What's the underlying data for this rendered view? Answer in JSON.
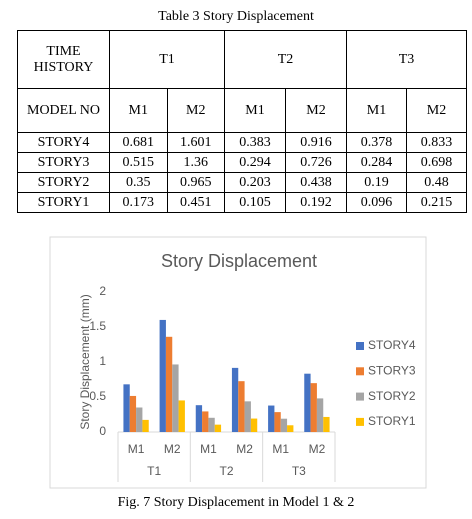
{
  "table_caption": "Table 3 Story Displacement",
  "table": {
    "header": {
      "time_history": "TIME HISTORY",
      "periods": [
        "T1",
        "T2",
        "T3"
      ],
      "model_no": "MODEL NO",
      "models": [
        "M1",
        "M2",
        "M1",
        "M2",
        "M1",
        "M2"
      ]
    },
    "rows": [
      [
        "STORY4",
        "0.681",
        "1.601",
        "0.383",
        "0.916",
        "0.378",
        "0.833"
      ],
      [
        "STORY3",
        "0.515",
        "1.36",
        "0.294",
        "0.726",
        "0.284",
        "0.698"
      ],
      [
        "STORY2",
        "0.35",
        "0.965",
        "0.203",
        "0.438",
        "0.19",
        "0.48"
      ],
      [
        "STORY1",
        "0.173",
        "0.451",
        "0.105",
        "0.192",
        "0.096",
        "0.215"
      ]
    ]
  },
  "chart_data": {
    "type": "bar",
    "title": "Story Displacement",
    "y_label": "Story Displacement (mm)",
    "categories": [
      "M1",
      "M2",
      "M1",
      "M2",
      "M1",
      "M2"
    ],
    "groups": [
      "T1",
      "T2",
      "T3"
    ],
    "series": [
      {
        "name": "STORY4",
        "color": "#4472c4",
        "values": [
          0.681,
          1.601,
          0.383,
          0.916,
          0.378,
          0.833
        ]
      },
      {
        "name": "STORY3",
        "color": "#ed7d31",
        "values": [
          0.515,
          1.36,
          0.294,
          0.726,
          0.284,
          0.698
        ]
      },
      {
        "name": "STORY2",
        "color": "#a5a5a5",
        "values": [
          0.35,
          0.965,
          0.203,
          0.438,
          0.19,
          0.48
        ]
      },
      {
        "name": "STORY1",
        "color": "#ffc000",
        "values": [
          0.173,
          0.451,
          0.105,
          0.192,
          0.096,
          0.215
        ]
      }
    ],
    "ylim": [
      0,
      2
    ],
    "yticks": [
      0,
      0.5,
      1,
      1.5,
      2
    ],
    "grid": false,
    "legend": "right"
  },
  "figure_caption": "Fig. 7 Story Displacement in Model 1 & 2"
}
